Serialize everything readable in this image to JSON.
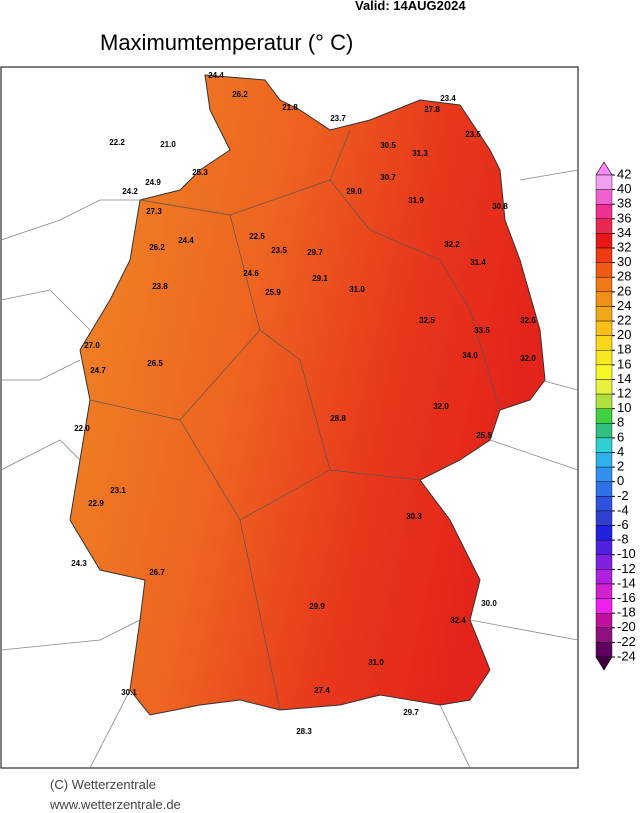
{
  "header": {
    "valid": "Valid:  14AUG2024",
    "title": "Maximumtemperatur (° C)"
  },
  "legend": {
    "ticks": [
      42,
      40,
      38,
      36,
      34,
      32,
      30,
      28,
      26,
      24,
      22,
      20,
      18,
      16,
      14,
      12,
      10,
      8,
      6,
      4,
      2,
      0,
      -2,
      -4,
      -6,
      -8,
      -10,
      -12,
      -14,
      -16,
      -18,
      -20,
      -22,
      -24
    ],
    "colors": [
      "#f0a0f0",
      "#f060d0",
      "#f03090",
      "#e82850",
      "#e81818",
      "#f03a10",
      "#f05a10",
      "#f07818",
      "#f09018",
      "#f0a818",
      "#f8c018",
      "#f8d818",
      "#f8e820",
      "#f8f828",
      "#e8f040",
      "#b0e040",
      "#40d040",
      "#30c080",
      "#30d0d0",
      "#30b0e8",
      "#3090f0",
      "#3070e8",
      "#3050e0",
      "#3040d0",
      "#2020e0",
      "#5020e0",
      "#8020e0",
      "#b020e0",
      "#d020d0",
      "#f020f0",
      "#c010a0",
      "#901080",
      "#600060"
    ],
    "top_color": "#ff88ff",
    "bottom_color": "#400040"
  },
  "stations": [
    "24.4",
    "26.2",
    "21.8",
    "22.2",
    "21.0",
    "23.7",
    "23.4",
    "27.8",
    "23.5",
    "30.5",
    "31.3",
    "25.3",
    "24.9",
    "24.2",
    "27.3",
    "29.0",
    "30.7",
    "31.9",
    "30.8",
    "26.2",
    "24.4",
    "22.5",
    "23.5",
    "29.7",
    "32.2",
    "31.4",
    "23.8",
    "24.6",
    "25.9",
    "29.1",
    "31.0",
    "33.5",
    "32.6",
    "27.0",
    "26.5",
    "32.5",
    "34.0",
    "32.0",
    "24.7",
    "22.0",
    "32.0",
    "25.5",
    "23.1",
    "22.9",
    "28.8",
    "30.3",
    "24.3",
    "26.7",
    "30.0",
    "29.9",
    "32.4",
    "30.1",
    "27.4",
    "29.7",
    "28.3",
    "31.0"
  ],
  "footer": {
    "copyright": "(C) Wetterzentrale",
    "url": "www.wetterzentrale.de"
  }
}
